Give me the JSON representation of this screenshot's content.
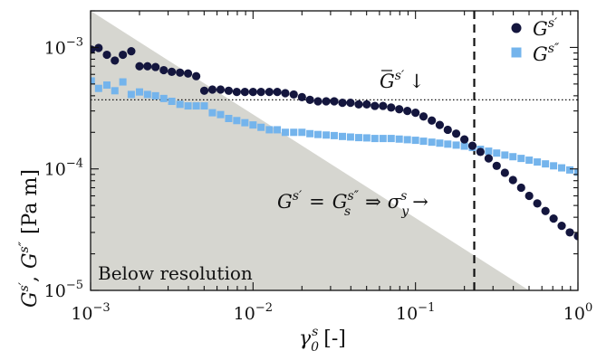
{
  "chart_data": {
    "type": "scatter",
    "xlabel_main": "γ",
    "xlabel_sub": "0",
    "xlabel_sup": "s",
    "xlabel_unit": "[-]",
    "ylabel": "G^{s′}, G^{s″} [Pa m]",
    "ylabel_parts": {
      "g1": "G",
      "p1": "s′",
      "comma": ",",
      "g2": "G",
      "p2": "s″",
      "unit": "[Pa m]"
    },
    "x_scale": "log",
    "y_scale": "log",
    "xlim": [
      0.001,
      1
    ],
    "ylim": [
      1e-05,
      0.002
    ],
    "x_ticks": [
      {
        "value": 0.001,
        "mantissa": "10",
        "exp": "−3"
      },
      {
        "value": 0.01,
        "mantissa": "10",
        "exp": "−2"
      },
      {
        "value": 0.1,
        "mantissa": "10",
        "exp": "−1"
      },
      {
        "value": 1,
        "mantissa": "10",
        "exp": "0"
      }
    ],
    "y_ticks": [
      {
        "value": 1e-05,
        "mantissa": "10",
        "exp": "−5"
      },
      {
        "value": 0.0001,
        "mantissa": "10",
        "exp": "−4"
      },
      {
        "value": 0.001,
        "mantissa": "10",
        "exp": "−3"
      }
    ],
    "legend_position": "top-right",
    "series": [
      {
        "name": "G^{s′}",
        "legend_base": "G",
        "legend_sup": "s′",
        "color": "#14163e",
        "marker": "circle",
        "x": [
          0.00101,
          0.00112,
          0.00126,
          0.00141,
          0.00158,
          0.00178,
          0.002,
          0.00224,
          0.00251,
          0.00282,
          0.00316,
          0.00355,
          0.00398,
          0.00447,
          0.00501,
          0.00562,
          0.00631,
          0.00708,
          0.00794,
          0.00891,
          0.01,
          0.0112,
          0.0126,
          0.0141,
          0.0158,
          0.0178,
          0.02,
          0.0224,
          0.0251,
          0.0282,
          0.0316,
          0.0355,
          0.0398,
          0.0447,
          0.0501,
          0.0562,
          0.0631,
          0.0708,
          0.0794,
          0.0891,
          0.1,
          0.112,
          0.126,
          0.141,
          0.158,
          0.178,
          0.2,
          0.224,
          0.251,
          0.282,
          0.316,
          0.355,
          0.398,
          0.447,
          0.501,
          0.562,
          0.631,
          0.708,
          0.794,
          0.891,
          1.0
        ],
        "y": [
          0.00096,
          0.00099,
          0.00087,
          0.00078,
          0.00087,
          0.00093,
          0.0007,
          0.0007,
          0.00069,
          0.00065,
          0.00063,
          0.00062,
          0.00061,
          0.00058,
          0.00044,
          0.00045,
          0.00045,
          0.00044,
          0.00043,
          0.00043,
          0.00043,
          0.00043,
          0.00043,
          0.00043,
          0.00042,
          0.00041,
          0.00039,
          0.00037,
          0.00036,
          0.00036,
          0.00036,
          0.00035,
          0.00035,
          0.00034,
          0.00034,
          0.00033,
          0.00033,
          0.00032,
          0.00031,
          0.0003,
          0.00029,
          0.00027,
          0.00025,
          0.00023,
          0.00021,
          0.000195,
          0.000175,
          0.000155,
          0.000138,
          0.000122,
          0.000106,
          9.3e-05,
          8.1e-05,
          7e-05,
          6e-05,
          5.2e-05,
          4.5e-05,
          3.9e-05,
          3.4e-05,
          3e-05,
          2.8e-05
        ]
      },
      {
        "name": "G^{s″}",
        "legend_base": "G",
        "legend_sup": "s″",
        "color": "#74b4ec",
        "marker": "square",
        "x": [
          0.00101,
          0.00112,
          0.00126,
          0.00141,
          0.00158,
          0.00178,
          0.002,
          0.00224,
          0.00251,
          0.00282,
          0.00316,
          0.00355,
          0.00398,
          0.00447,
          0.00501,
          0.00562,
          0.00631,
          0.00708,
          0.00794,
          0.00891,
          0.01,
          0.0112,
          0.0126,
          0.0141,
          0.0158,
          0.0178,
          0.02,
          0.0224,
          0.0251,
          0.0282,
          0.0316,
          0.0355,
          0.0398,
          0.0447,
          0.0501,
          0.0562,
          0.0631,
          0.0708,
          0.0794,
          0.0891,
          0.1,
          0.112,
          0.126,
          0.141,
          0.158,
          0.178,
          0.2,
          0.224,
          0.251,
          0.282,
          0.316,
          0.355,
          0.398,
          0.447,
          0.501,
          0.562,
          0.631,
          0.708,
          0.794,
          0.891,
          1.0
        ],
        "y": [
          0.00053,
          0.00046,
          0.00049,
          0.00044,
          0.00052,
          0.00041,
          0.00043,
          0.00041,
          0.0004,
          0.00038,
          0.00036,
          0.00034,
          0.00033,
          0.00033,
          0.00033,
          0.00029,
          0.00028,
          0.00026,
          0.00025,
          0.00024,
          0.00023,
          0.00022,
          0.00021,
          0.00021,
          0.0002,
          0.0002,
          0.0002,
          0.000195,
          0.000192,
          0.00019,
          0.000188,
          0.000185,
          0.000183,
          0.000181,
          0.00018,
          0.000178,
          0.000178,
          0.000178,
          0.000176,
          0.000174,
          0.000172,
          0.000169,
          0.000166,
          0.000163,
          0.00016,
          0.000157,
          0.000154,
          0.00015,
          0.000145,
          0.00014,
          0.000135,
          0.00013,
          0.000126,
          0.000122,
          0.000118,
          0.000114,
          0.00011,
          0.000106,
          0.000102,
          9.8e-05,
          9.4e-05
        ]
      }
    ],
    "reference_line": {
      "y": 0.00037,
      "style": "dotted"
    },
    "vertical_line": {
      "x": 0.23,
      "style": "dashed"
    },
    "shaded_region": {
      "label": "Below resolution",
      "color": "#d6d6d0",
      "boundary": [
        [
          0.001,
          0.002
        ],
        [
          0.5,
          1e-05
        ]
      ]
    },
    "annotations": {
      "gbar": {
        "base": "G",
        "sup": "s′",
        "arrow": "↓"
      },
      "crossover": {
        "lhs_base": "G",
        "lhs_sup": "s′",
        "eq": "=",
        "rhs_base": "G",
        "rhs_sub": "s",
        "rhs_sup": "s″",
        "implies": "⇒",
        "sigma": "σ",
        "sigma_sub": "y",
        "sigma_sup": "s",
        "arrow": "→"
      }
    }
  }
}
